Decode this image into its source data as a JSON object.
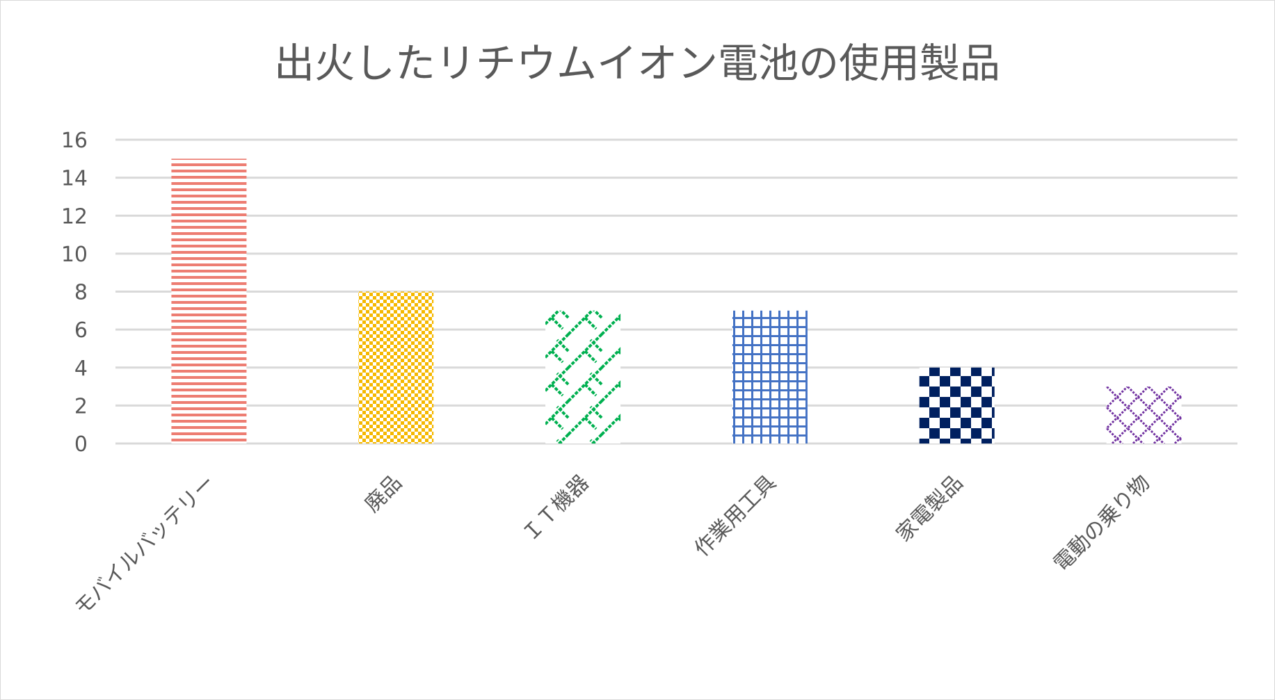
{
  "chart_data": {
    "type": "bar",
    "title": "出火したリチウムイオン電池の使用製品",
    "categories": [
      "モバイルバッテリー",
      "廃品",
      "ＩＴ機器",
      "作業用工具",
      "家電製品",
      "電動の乗り物"
    ],
    "values": [
      15,
      8,
      7,
      7,
      4,
      3
    ],
    "ylim": [
      0,
      16
    ],
    "yticks": [
      0,
      2,
      4,
      6,
      8,
      10,
      12,
      14,
      16
    ],
    "xlabel": "",
    "ylabel": "",
    "grid": true,
    "legend": "none",
    "colors": [
      "#ed7d72",
      "#f5b800",
      "#00b050",
      "#4472c4",
      "#002060",
      "#7030a0"
    ],
    "patterns": [
      "horizontal-lines",
      "small-checker",
      "diagonal-brick",
      "grid",
      "large-checker",
      "diamond-lattice"
    ]
  }
}
